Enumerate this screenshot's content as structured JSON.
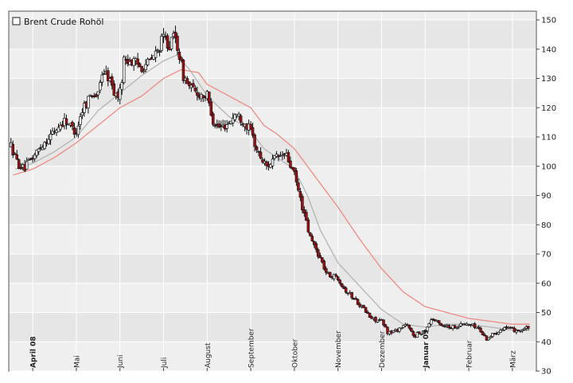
{
  "chart_data": {
    "type": "candlestick",
    "legend": {
      "label": "Brent Crude Rohöl",
      "position": "top-left"
    },
    "y_axis": {
      "ticks": [
        30,
        40,
        50,
        60,
        70,
        80,
        90,
        100,
        110,
        120,
        130,
        140,
        150
      ],
      "ylim": [
        30,
        153
      ],
      "position": "right",
      "grid": true
    },
    "x_axis": {
      "labels": [
        {
          "text": "April 08",
          "t": 0.0,
          "bold": true
        },
        {
          "text": "Mai",
          "t": 1.0,
          "bold": false
        },
        {
          "text": "Juni",
          "t": 2.0,
          "bold": false
        },
        {
          "text": "Juli",
          "t": 3.0,
          "bold": false
        },
        {
          "text": "August",
          "t": 4.0,
          "bold": false
        },
        {
          "text": "September",
          "t": 5.0,
          "bold": false
        },
        {
          "text": "Oktober",
          "t": 6.0,
          "bold": false
        },
        {
          "text": "November",
          "t": 7.0,
          "bold": false
        },
        {
          "text": "Dezember",
          "t": 8.0,
          "bold": false
        },
        {
          "text": "Januar 09",
          "t": 9.0,
          "bold": true
        },
        {
          "text": "Februar",
          "t": 10.0,
          "bold": false
        },
        {
          "text": "März",
          "t": 11.0,
          "bold": false
        }
      ],
      "range_months": [
        -0.55,
        11.55
      ]
    },
    "price_path": [
      [
        -0.5,
        107
      ],
      [
        -0.35,
        101
      ],
      [
        -0.2,
        99
      ],
      [
        0.0,
        103
      ],
      [
        0.25,
        108
      ],
      [
        0.5,
        112
      ],
      [
        0.75,
        116
      ],
      [
        0.9,
        113
      ],
      [
        1.0,
        112
      ],
      [
        1.15,
        120
      ],
      [
        1.35,
        125
      ],
      [
        1.5,
        124
      ],
      [
        1.6,
        133
      ],
      [
        1.75,
        130
      ],
      [
        1.9,
        124
      ],
      [
        2.0,
        125
      ],
      [
        2.1,
        137
      ],
      [
        2.25,
        136
      ],
      [
        2.5,
        134
      ],
      [
        2.7,
        136
      ],
      [
        2.85,
        139
      ],
      [
        3.0,
        144
      ],
      [
        3.15,
        141
      ],
      [
        3.25,
        145
      ],
      [
        3.35,
        139
      ],
      [
        3.45,
        131
      ],
      [
        3.6,
        127
      ],
      [
        3.75,
        125
      ],
      [
        4.0,
        124
      ],
      [
        4.15,
        115
      ],
      [
        4.3,
        113
      ],
      [
        4.5,
        115
      ],
      [
        4.65,
        118
      ],
      [
        4.8,
        116
      ],
      [
        5.0,
        112
      ],
      [
        5.15,
        105
      ],
      [
        5.35,
        100
      ],
      [
        5.6,
        103
      ],
      [
        5.8,
        104
      ],
      [
        6.0,
        97
      ],
      [
        6.15,
        88
      ],
      [
        6.35,
        76
      ],
      [
        6.55,
        70
      ],
      [
        6.75,
        63
      ],
      [
        7.0,
        62
      ],
      [
        7.15,
        58
      ],
      [
        7.35,
        55
      ],
      [
        7.55,
        52
      ],
      [
        7.75,
        48
      ],
      [
        8.0,
        47
      ],
      [
        8.15,
        43
      ],
      [
        8.35,
        44
      ],
      [
        8.55,
        46
      ],
      [
        8.75,
        42
      ],
      [
        9.0,
        44
      ],
      [
        9.15,
        48
      ],
      [
        9.35,
        46
      ],
      [
        9.6,
        45
      ],
      [
        9.85,
        46
      ],
      [
        10.0,
        46
      ],
      [
        10.2,
        45
      ],
      [
        10.4,
        41
      ],
      [
        10.6,
        43
      ],
      [
        10.8,
        45
      ],
      [
        11.0,
        44
      ],
      [
        11.2,
        44
      ],
      [
        11.4,
        45
      ]
    ],
    "ma_short": [
      [
        -0.4,
        99
      ],
      [
        0.0,
        101
      ],
      [
        0.5,
        105
      ],
      [
        1.0,
        110
      ],
      [
        1.5,
        119
      ],
      [
        2.0,
        125
      ],
      [
        2.5,
        131
      ],
      [
        3.0,
        136
      ],
      [
        3.3,
        138
      ],
      [
        3.6,
        133
      ],
      [
        4.0,
        124
      ],
      [
        4.5,
        117
      ],
      [
        5.0,
        112
      ],
      [
        5.3,
        106
      ],
      [
        5.7,
        102
      ],
      [
        6.0,
        99
      ],
      [
        6.3,
        90
      ],
      [
        6.6,
        78
      ],
      [
        7.0,
        67
      ],
      [
        7.5,
        59
      ],
      [
        8.0,
        51
      ],
      [
        8.5,
        46
      ],
      [
        9.0,
        45
      ],
      [
        9.5,
        46
      ],
      [
        10.0,
        46
      ],
      [
        10.5,
        45
      ],
      [
        11.0,
        44
      ],
      [
        11.4,
        44
      ]
    ],
    "ma_long": [
      [
        -0.45,
        97
      ],
      [
        0.0,
        99
      ],
      [
        0.5,
        103
      ],
      [
        1.0,
        108
      ],
      [
        1.5,
        114
      ],
      [
        2.0,
        120
      ],
      [
        2.5,
        124
      ],
      [
        3.0,
        130
      ],
      [
        3.4,
        133
      ],
      [
        3.8,
        132
      ],
      [
        4.0,
        128
      ],
      [
        4.5,
        124
      ],
      [
        5.0,
        120
      ],
      [
        5.3,
        114
      ],
      [
        5.6,
        111
      ],
      [
        6.0,
        106
      ],
      [
        6.5,
        96
      ],
      [
        7.0,
        86
      ],
      [
        7.5,
        75
      ],
      [
        8.0,
        65
      ],
      [
        8.5,
        57
      ],
      [
        9.0,
        52
      ],
      [
        9.5,
        50
      ],
      [
        10.0,
        48
      ],
      [
        10.5,
        47
      ],
      [
        11.0,
        46
      ],
      [
        11.4,
        46
      ]
    ],
    "colors": {
      "up_body": "#ffffff",
      "down_body": "#aa0e12",
      "wick": "#111111",
      "ma_short": "#b4b4b4",
      "ma_long": "#f08a84",
      "plot_bg": "#efefef",
      "band": "#e6e6e6",
      "grid": "#ffffff"
    }
  }
}
